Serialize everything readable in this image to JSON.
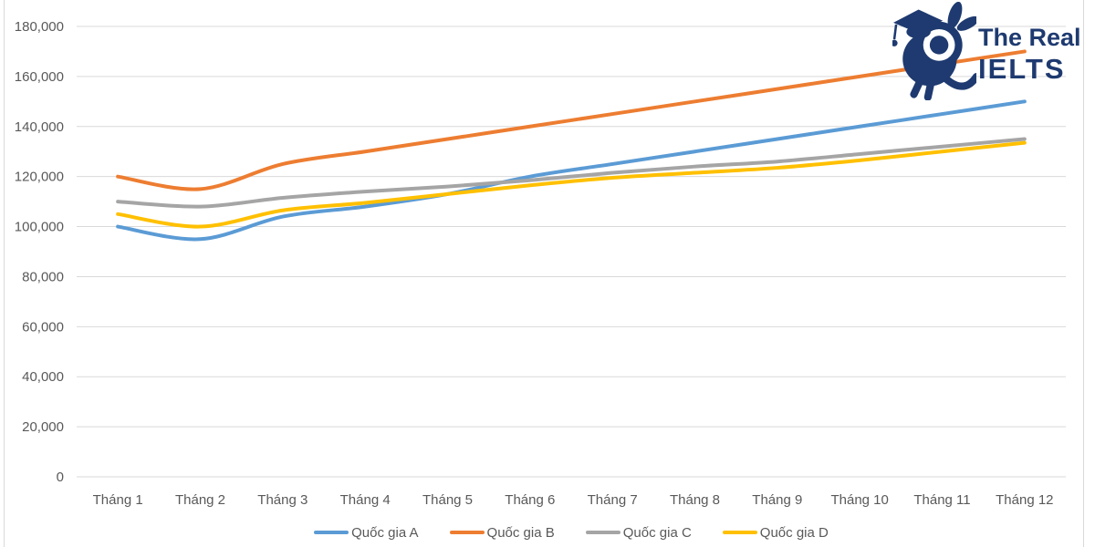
{
  "logo": {
    "line1": "The Real",
    "line2": "IELTS",
    "color": "#1e3a70",
    "mascot": "graduate-rabbit-mascot"
  },
  "chart_data": {
    "type": "line",
    "title": "",
    "xlabel": "",
    "ylabel": "",
    "categories": [
      "Tháng 1",
      "Tháng 2",
      "Tháng 3",
      "Tháng 4",
      "Tháng 5",
      "Tháng 6",
      "Tháng 7",
      "Tháng 8",
      "Tháng 9",
      "Tháng 10",
      "Tháng 11",
      "Tháng 12"
    ],
    "series": [
      {
        "name": "Quốc gia A",
        "color": "#5B9BD5",
        "values": [
          100000,
          95000,
          104000,
          108000,
          113000,
          120000,
          125000,
          130000,
          135000,
          140000,
          145000,
          150000
        ]
      },
      {
        "name": "Quốc gia B",
        "color": "#ED7D31",
        "values": [
          120000,
          115000,
          125000,
          130000,
          135000,
          140000,
          145000,
          150000,
          155000,
          160000,
          165000,
          170000
        ]
      },
      {
        "name": "Quốc gia C",
        "color": "#A5A5A5",
        "values": [
          110000,
          108000,
          111500,
          114000,
          116000,
          118500,
          121500,
          124000,
          126000,
          129000,
          132000,
          135000
        ]
      },
      {
        "name": "Quốc gia D",
        "color": "#FFC000",
        "values": [
          105000,
          100000,
          106500,
          109500,
          113000,
          116500,
          119500,
          121500,
          123500,
          126500,
          130000,
          133500
        ]
      }
    ],
    "ylim": [
      0,
      180000
    ],
    "ytick_step": 20000,
    "ytick_labels": [
      "0",
      "20,000",
      "40,000",
      "60,000",
      "80,000",
      "100,000",
      "120,000",
      "140,000",
      "160,000",
      "180,000"
    ],
    "grid": true,
    "smooth_lines": true,
    "legend_position": "bottom",
    "axis_text_color": "#595959",
    "gridline_color": "#d9d9d9",
    "chart_border_color": "#d9d9d9"
  }
}
